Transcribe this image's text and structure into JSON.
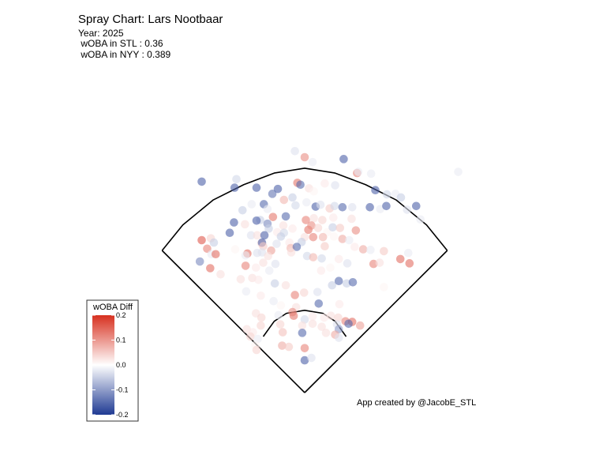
{
  "title": "Spray Chart: Lars Nootbaar",
  "subtitle_lines": [
    "Year: 2025",
    " wOBA in STL : 0.36",
    " wOBA in NYY : 0.389"
  ],
  "credit": "App created by @JacobE_STL",
  "chart_data": {
    "type": "scatter",
    "title": "Spray Chart: Lars Nootbaar",
    "xlabel": "",
    "ylabel": "",
    "grid": false,
    "color_scale": {
      "name": "wOBA Diff",
      "min": -0.2,
      "max": 0.2,
      "ticks": [
        0.2,
        0.1,
        0.0,
        -0.1,
        -0.2
      ],
      "tick_labels": [
        "0.2",
        "0.1",
        "0.0",
        "-0.1",
        "-0.2"
      ],
      "high_color": "#d7301f",
      "mid_color": "#ffffff",
      "low_color": "#1f3a93",
      "legend_position": "bottom-left"
    },
    "x_range": [
      -250,
      250
    ],
    "y_range": [
      -30,
      480
    ],
    "field": {
      "foul_line_length": 330,
      "outfield_fence": [
        [
          -234,
          233
        ],
        [
          -200,
          275
        ],
        [
          -150,
          316
        ],
        [
          -100,
          341
        ],
        [
          -50,
          360
        ],
        [
          0,
          368
        ],
        [
          50,
          360
        ],
        [
          100,
          341
        ],
        [
          150,
          316
        ],
        [
          200,
          275
        ],
        [
          234,
          233
        ]
      ],
      "infield_arc": [
        [
          -68,
          92
        ],
        [
          -50,
          117
        ],
        [
          -30,
          130
        ],
        [
          0,
          135
        ],
        [
          30,
          130
        ],
        [
          50,
          117
        ],
        [
          68,
          92
        ]
      ]
    },
    "points": [
      {
        "x": -16,
        "y": 396,
        "woba_diff": -0.03
      },
      {
        "x": 0,
        "y": 386,
        "woba_diff": 0.11
      },
      {
        "x": 13,
        "y": 378,
        "woba_diff": -0.02
      },
      {
        "x": 64,
        "y": 383,
        "woba_diff": -0.16
      },
      {
        "x": 86,
        "y": 360,
        "woba_diff": 0.12
      },
      {
        "x": 88,
        "y": 362,
        "woba_diff": -0.02
      },
      {
        "x": 109,
        "y": 359,
        "woba_diff": -0.02
      },
      {
        "x": 252,
        "y": 362,
        "woba_diff": -0.02
      },
      {
        "x": -169,
        "y": 346,
        "woba_diff": -0.16
      },
      {
        "x": -112,
        "y": 350,
        "woba_diff": -0.04
      },
      {
        "x": -115,
        "y": 336,
        "woba_diff": -0.16
      },
      {
        "x": -79,
        "y": 336,
        "woba_diff": -0.16
      },
      {
        "x": -44,
        "y": 334,
        "woba_diff": -0.16
      },
      {
        "x": -12,
        "y": 344,
        "woba_diff": 0.13
      },
      {
        "x": -7,
        "y": 341,
        "woba_diff": -0.15
      },
      {
        "x": 7,
        "y": 335,
        "woba_diff": 0.03
      },
      {
        "x": 15,
        "y": 330,
        "woba_diff": 0.01
      },
      {
        "x": 33,
        "y": 343,
        "woba_diff": 0.02
      },
      {
        "x": 50,
        "y": 340,
        "woba_diff": -0.03
      },
      {
        "x": 116,
        "y": 332,
        "woba_diff": -0.16
      },
      {
        "x": 135,
        "y": 325,
        "woba_diff": -0.04
      },
      {
        "x": 149,
        "y": 326,
        "woba_diff": -0.02
      },
      {
        "x": 158,
        "y": 320,
        "woba_diff": -0.05
      },
      {
        "x": 183,
        "y": 306,
        "woba_diff": -0.16
      },
      {
        "x": -53,
        "y": 326,
        "woba_diff": -0.14
      },
      {
        "x": -34,
        "y": 316,
        "woba_diff": 0.07
      },
      {
        "x": -20,
        "y": 320,
        "woba_diff": -0.05
      },
      {
        "x": -67,
        "y": 309,
        "woba_diff": -0.15
      },
      {
        "x": -61,
        "y": 301,
        "woba_diff": -0.02
      },
      {
        "x": -87,
        "y": 309,
        "woba_diff": -0.02
      },
      {
        "x": -102,
        "y": 299,
        "woba_diff": -0.05
      },
      {
        "x": -15,
        "y": 307,
        "woba_diff": -0.04
      },
      {
        "x": 3,
        "y": 312,
        "woba_diff": -0.02
      },
      {
        "x": 18,
        "y": 305,
        "woba_diff": -0.16
      },
      {
        "x": 26,
        "y": 308,
        "woba_diff": -0.03
      },
      {
        "x": 41,
        "y": 302,
        "woba_diff": 0.05
      },
      {
        "x": 49,
        "y": 306,
        "woba_diff": -0.04
      },
      {
        "x": 62,
        "y": 304,
        "woba_diff": -0.15
      },
      {
        "x": 78,
        "y": 304,
        "woba_diff": -0.03
      },
      {
        "x": 107,
        "y": 304,
        "woba_diff": -0.16
      },
      {
        "x": 124,
        "y": 301,
        "woba_diff": -0.02
      },
      {
        "x": 134,
        "y": 306,
        "woba_diff": -0.16
      },
      {
        "x": 168,
        "y": 300,
        "woba_diff": -0.03
      },
      {
        "x": 190,
        "y": 284,
        "woba_diff": -0.02
      },
      {
        "x": -73,
        "y": 283,
        "woba_diff": -0.05
      },
      {
        "x": -52,
        "y": 288,
        "woba_diff": 0.13
      },
      {
        "x": -31,
        "y": 289,
        "woba_diff": -0.15
      },
      {
        "x": 2,
        "y": 283,
        "woba_diff": 0.12
      },
      {
        "x": 15,
        "y": 286,
        "woba_diff": 0.03
      },
      {
        "x": 29,
        "y": 283,
        "woba_diff": 0.04
      },
      {
        "x": 47,
        "y": 287,
        "woba_diff": 0.02
      },
      {
        "x": 77,
        "y": 285,
        "woba_diff": 0.03
      },
      {
        "x": -79,
        "y": 282,
        "woba_diff": -0.16
      },
      {
        "x": -61,
        "y": 277,
        "woba_diff": -0.12
      },
      {
        "x": -35,
        "y": 274,
        "woba_diff": 0.03
      },
      {
        "x": -98,
        "y": 276,
        "woba_diff": 0.03
      },
      {
        "x": -116,
        "y": 279,
        "woba_diff": -0.16
      },
      {
        "x": -59,
        "y": 269,
        "woba_diff": -0.05
      },
      {
        "x": -45,
        "y": 263,
        "woba_diff": 0.02
      },
      {
        "x": -20,
        "y": 269,
        "woba_diff": 0.02
      },
      {
        "x": -34,
        "y": 262,
        "woba_diff": -0.04
      },
      {
        "x": 6,
        "y": 267,
        "woba_diff": 0.13
      },
      {
        "x": 11,
        "y": 274,
        "woba_diff": 0.11
      },
      {
        "x": 22,
        "y": 270,
        "woba_diff": 0.04
      },
      {
        "x": 37,
        "y": 263,
        "woba_diff": 0.01
      },
      {
        "x": 46,
        "y": 271,
        "woba_diff": -0.05
      },
      {
        "x": 58,
        "y": 270,
        "woba_diff": 0.05
      },
      {
        "x": 84,
        "y": 266,
        "woba_diff": 0.11
      },
      {
        "x": -123,
        "y": 262,
        "woba_diff": -0.16
      },
      {
        "x": -88,
        "y": 258,
        "woba_diff": -0.03
      },
      {
        "x": -78,
        "y": 258,
        "woba_diff": 0.03
      },
      {
        "x": -66,
        "y": 258,
        "woba_diff": -0.16
      },
      {
        "x": -39,
        "y": 256,
        "woba_diff": -0.05
      },
      {
        "x": 0,
        "y": 255,
        "woba_diff": 0.03
      },
      {
        "x": 14,
        "y": 255,
        "woba_diff": 0.12
      },
      {
        "x": 30,
        "y": 255,
        "woba_diff": 0.07
      },
      {
        "x": 48,
        "y": 256,
        "woba_diff": 0.01
      },
      {
        "x": 62,
        "y": 252,
        "woba_diff": 0.08
      },
      {
        "x": 73,
        "y": 250,
        "woba_diff": -0.02
      },
      {
        "x": -71,
        "y": 245,
        "woba_diff": 0.04
      },
      {
        "x": -70,
        "y": 246,
        "woba_diff": -0.16
      },
      {
        "x": -46,
        "y": 244,
        "woba_diff": -0.03
      },
      {
        "x": -25,
        "y": 246,
        "woba_diff": 0.02
      },
      {
        "x": -5,
        "y": 247,
        "woba_diff": -0.05
      },
      {
        "x": -68,
        "y": 240,
        "woba_diff": 0.05
      },
      {
        "x": -23,
        "y": 237,
        "woba_diff": 0.07
      },
      {
        "x": -13,
        "y": 239,
        "woba_diff": -0.15
      },
      {
        "x": 33,
        "y": 240,
        "woba_diff": 0.05
      },
      {
        "x": 82,
        "y": 239,
        "woba_diff": 0.02
      },
      {
        "x": 96,
        "y": 235,
        "woba_diff": 0.08
      },
      {
        "x": 108,
        "y": 234,
        "woba_diff": -0.02
      },
      {
        "x": 130,
        "y": 232,
        "woba_diff": 0.05
      },
      {
        "x": -55,
        "y": 233,
        "woba_diff": 0.09
      },
      {
        "x": -70,
        "y": 230,
        "woba_diff": -0.03
      },
      {
        "x": -114,
        "y": 235,
        "woba_diff": 0.01
      },
      {
        "x": 170,
        "y": 229,
        "woba_diff": -0.02
      },
      {
        "x": -169,
        "y": 250,
        "woba_diff": 0.16
      },
      {
        "x": -154,
        "y": 253,
        "woba_diff": 0.04
      },
      {
        "x": -149,
        "y": 246,
        "woba_diff": -0.05
      },
      {
        "x": -160,
        "y": 236,
        "woba_diff": 0.12
      },
      {
        "x": -153,
        "y": 227,
        "woba_diff": -0.02
      },
      {
        "x": -146,
        "y": 227,
        "woba_diff": 0.14
      },
      {
        "x": -94,
        "y": 228,
        "woba_diff": 0.14
      },
      {
        "x": -97,
        "y": 225,
        "woba_diff": -0.02
      },
      {
        "x": -78,
        "y": 229,
        "woba_diff": -0.03
      },
      {
        "x": -60,
        "y": 224,
        "woba_diff": 0.03
      },
      {
        "x": -22,
        "y": 230,
        "woba_diff": 0.03
      },
      {
        "x": 4,
        "y": 224,
        "woba_diff": -0.04
      },
      {
        "x": 14,
        "y": 222,
        "woba_diff": 0.07
      },
      {
        "x": 28,
        "y": 220,
        "woba_diff": -0.04
      },
      {
        "x": 56,
        "y": 219,
        "woba_diff": 0.02
      },
      {
        "x": -172,
        "y": 215,
        "woba_diff": -0.12
      },
      {
        "x": -68,
        "y": 213,
        "woba_diff": 0.03
      },
      {
        "x": -48,
        "y": 211,
        "woba_diff": -0.03
      },
      {
        "x": -80,
        "y": 205,
        "woba_diff": 0.02
      },
      {
        "x": -58,
        "y": 200,
        "woba_diff": -0.02
      },
      {
        "x": -97,
        "y": 208,
        "woba_diff": 0.12
      },
      {
        "x": 27,
        "y": 200,
        "woba_diff": 0.02
      },
      {
        "x": 42,
        "y": 205,
        "woba_diff": 0.01
      },
      {
        "x": 70,
        "y": 212,
        "woba_diff": -0.03
      },
      {
        "x": 113,
        "y": 211,
        "woba_diff": 0.12
      },
      {
        "x": 123,
        "y": 213,
        "woba_diff": 0.03
      },
      {
        "x": 157,
        "y": 219,
        "woba_diff": 0.14
      },
      {
        "x": 172,
        "y": 212,
        "woba_diff": 0.14
      },
      {
        "x": -155,
        "y": 204,
        "woba_diff": 0.14
      },
      {
        "x": -138,
        "y": 194,
        "woba_diff": 0.03
      },
      {
        "x": -105,
        "y": 186,
        "woba_diff": 0.03
      },
      {
        "x": -86,
        "y": 188,
        "woba_diff": 0.03
      },
      {
        "x": -76,
        "y": 185,
        "woba_diff": 0.02
      },
      {
        "x": -49,
        "y": 179,
        "woba_diff": -0.05
      },
      {
        "x": -31,
        "y": 176,
        "woba_diff": 0.03
      },
      {
        "x": 45,
        "y": 176,
        "woba_diff": -0.05
      },
      {
        "x": 56,
        "y": 183,
        "woba_diff": -0.15
      },
      {
        "x": 69,
        "y": 179,
        "woba_diff": -0.05
      },
      {
        "x": 79,
        "y": 181,
        "woba_diff": -0.15
      },
      {
        "x": 130,
        "y": 173,
        "woba_diff": 0.01
      },
      {
        "x": -96,
        "y": 166,
        "woba_diff": -0.02
      },
      {
        "x": -72,
        "y": 159,
        "woba_diff": 0.02
      },
      {
        "x": -16,
        "y": 160,
        "woba_diff": 0.12
      },
      {
        "x": -1,
        "y": 164,
        "woba_diff": 0.04
      },
      {
        "x": 21,
        "y": 165,
        "woba_diff": -0.03
      },
      {
        "x": -51,
        "y": 150,
        "woba_diff": -0.02
      },
      {
        "x": -39,
        "y": 143,
        "woba_diff": 0.01
      },
      {
        "x": -14,
        "y": 140,
        "woba_diff": 0.03
      },
      {
        "x": 23,
        "y": 146,
        "woba_diff": -0.15
      },
      {
        "x": 57,
        "y": 145,
        "woba_diff": 0.02
      },
      {
        "x": -80,
        "y": 130,
        "woba_diff": 0.03
      },
      {
        "x": -71,
        "y": 123,
        "woba_diff": 0.04
      },
      {
        "x": -43,
        "y": 127,
        "woba_diff": -0.02
      },
      {
        "x": -20,
        "y": 132,
        "woba_diff": 0.11
      },
      {
        "x": -18,
        "y": 126,
        "woba_diff": 0.13
      },
      {
        "x": 0,
        "y": 120,
        "woba_diff": -0.04
      },
      {
        "x": 13,
        "y": 125,
        "woba_diff": 0.02
      },
      {
        "x": 32,
        "y": 123,
        "woba_diff": 0.02
      },
      {
        "x": 43,
        "y": 126,
        "woba_diff": 0.03
      },
      {
        "x": 55,
        "y": 123,
        "woba_diff": 0.04
      },
      {
        "x": 67,
        "y": 117,
        "woba_diff": 0.12
      },
      {
        "x": 78,
        "y": 116,
        "woba_diff": 0.14
      },
      {
        "x": -72,
        "y": 110,
        "woba_diff": 0.04
      },
      {
        "x": -40,
        "y": 112,
        "woba_diff": 0.04
      },
      {
        "x": -4,
        "y": 110,
        "woba_diff": 0.03
      },
      {
        "x": 13,
        "y": 113,
        "woba_diff": 0.03
      },
      {
        "x": 28,
        "y": 108,
        "woba_diff": 0.03
      },
      {
        "x": 53,
        "y": 112,
        "woba_diff": -0.03
      },
      {
        "x": 72,
        "y": 113,
        "woba_diff": -0.15
      },
      {
        "x": 91,
        "y": 110,
        "woba_diff": 0.09
      },
      {
        "x": -95,
        "y": 104,
        "woba_diff": 0.03
      },
      {
        "x": -85,
        "y": 99,
        "woba_diff": 0.02
      },
      {
        "x": -36,
        "y": 99,
        "woba_diff": 0.06
      },
      {
        "x": -4,
        "y": 98,
        "woba_diff": -0.15
      },
      {
        "x": 35,
        "y": 98,
        "woba_diff": 0.03
      },
      {
        "x": 56,
        "y": 104,
        "woba_diff": -0.1
      },
      {
        "x": -89,
        "y": 92,
        "woba_diff": 0.04
      },
      {
        "x": -77,
        "y": 88,
        "woba_diff": -0.02
      },
      {
        "x": 50,
        "y": 95,
        "woba_diff": 0.08
      },
      {
        "x": 56,
        "y": 90,
        "woba_diff": -0.03
      },
      {
        "x": -81,
        "y": 78,
        "woba_diff": 0.01
      },
      {
        "x": -79,
        "y": 70,
        "woba_diff": 0.04
      },
      {
        "x": -37,
        "y": 77,
        "woba_diff": 0.08
      },
      {
        "x": -26,
        "y": 75,
        "woba_diff": 0.05
      },
      {
        "x": 0,
        "y": 73,
        "woba_diff": 0.12
      },
      {
        "x": 0,
        "y": 53,
        "woba_diff": -0.16
      },
      {
        "x": 11,
        "y": 57,
        "woba_diff": -0.03
      }
    ]
  }
}
